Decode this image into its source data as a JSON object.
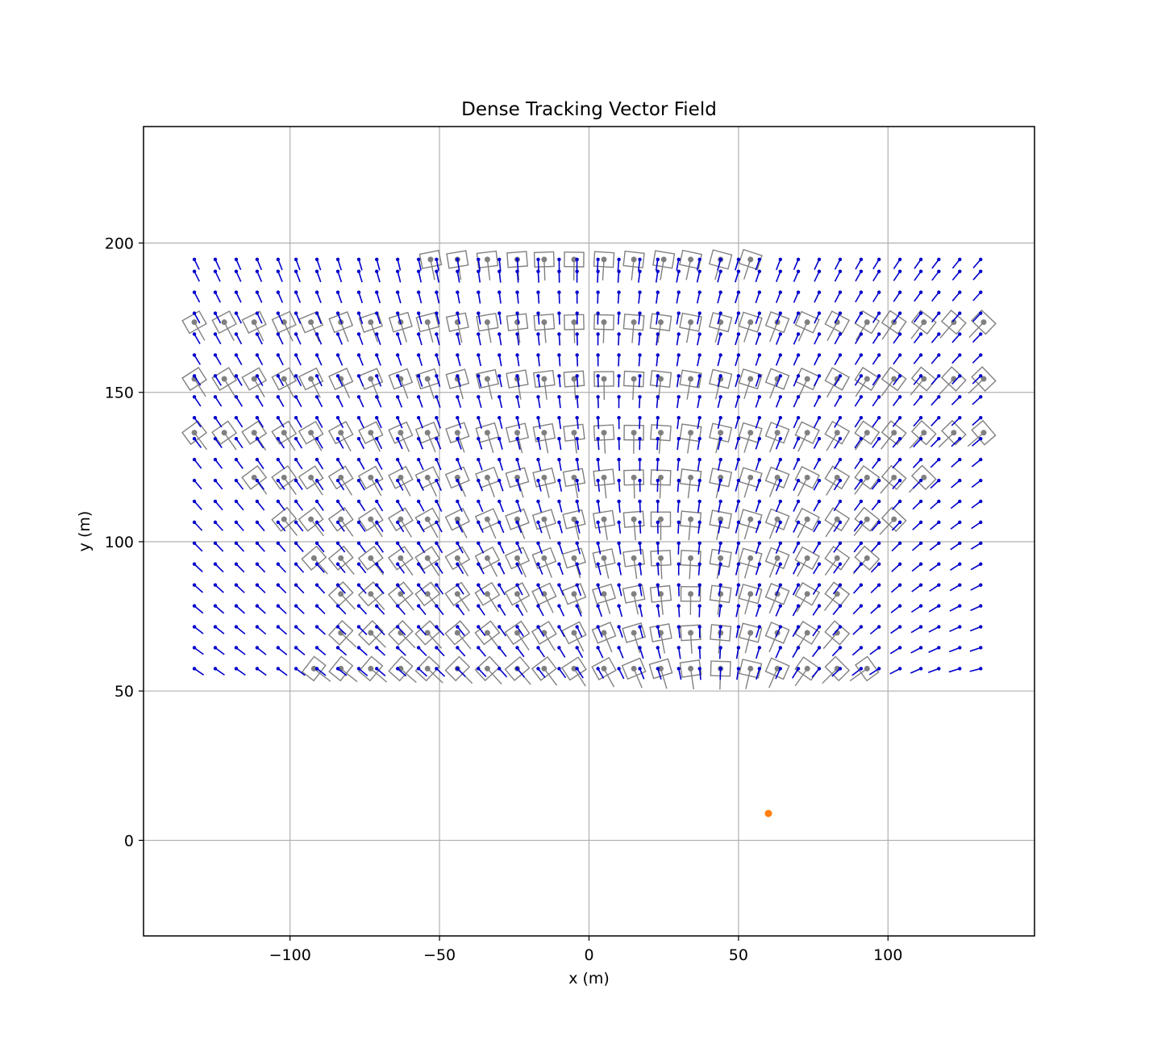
{
  "chart_data": {
    "type": "vector-field",
    "title": "Dense Tracking Vector Field",
    "xlabel": "x (m)",
    "ylabel": "y (m)",
    "xlim": [
      -149,
      149
    ],
    "ylim": [
      -32,
      239
    ],
    "xticks": [
      -100,
      -50,
      0,
      50,
      100
    ],
    "xtick_labels": [
      "−100",
      "−50",
      "0",
      "50",
      "100"
    ],
    "yticks": [
      0,
      50,
      100,
      150,
      200
    ],
    "ytick_labels": [
      "0",
      "50",
      "100",
      "150",
      "200"
    ],
    "grid": true,
    "colors": {
      "vectors": "#0000cc",
      "tracked": "#808080",
      "sensor": "#ff7f0e",
      "grid": "#b0b0b0",
      "axes": "#000000"
    },
    "grid_x": [
      -132,
      -125,
      -118,
      -111,
      -104,
      -98,
      -91,
      -84,
      -77,
      -71,
      -64,
      -57,
      -51,
      -44,
      -37,
      -30,
      -24,
      -17,
      -10,
      -4,
      3,
      10,
      17,
      23,
      30,
      37,
      44,
      50,
      57,
      64,
      70,
      77,
      84,
      91,
      97,
      104,
      111,
      117,
      124,
      131
    ],
    "grid_y": [
      57.5,
      64.5,
      71.5,
      78.5,
      85.5,
      92.5,
      99.5,
      106.5,
      113.5,
      120.5,
      127.5,
      134.5,
      141.5,
      148.5,
      155.5,
      162.5,
      169.5,
      176.5,
      183.5,
      190.5,
      194.5
    ],
    "sensor": {
      "x": 60,
      "y": 9
    },
    "tracked_objects": [
      {
        "y": 194.5,
        "x": [
          -53,
          -44,
          -34,
          -24,
          -15,
          -5,
          5,
          15,
          25,
          34,
          44,
          54
        ]
      },
      {
        "y": 173.5,
        "x": [
          -132,
          -122,
          -112,
          -102,
          -93,
          -83,
          -73,
          -63,
          -54,
          -44,
          -34,
          -24,
          -15,
          -5,
          5,
          15,
          24,
          34,
          44,
          54,
          63,
          73,
          83,
          93,
          102,
          112,
          122,
          132
        ]
      },
      {
        "y": 154.5,
        "x": [
          -132,
          -122,
          -112,
          -102,
          -93,
          -83,
          -73,
          -63,
          -54,
          -44,
          -34,
          -24,
          -15,
          -5,
          5,
          15,
          24,
          34,
          44,
          54,
          63,
          73,
          83,
          93,
          102,
          112,
          122,
          132
        ]
      },
      {
        "y": 136.5,
        "x": [
          -132,
          -122,
          -112,
          -102,
          -93,
          -83,
          -73,
          -63,
          -54,
          -44,
          -34,
          -24,
          -15,
          -5,
          5,
          15,
          24,
          34,
          44,
          54,
          63,
          73,
          83,
          93,
          102,
          112,
          122,
          132
        ]
      },
      {
        "y": 121.5,
        "x": [
          -112,
          -102,
          -93,
          -83,
          -73,
          -63,
          -54,
          -44,
          -34,
          -24,
          -15,
          -5,
          5,
          15,
          24,
          34,
          44,
          54,
          63,
          73,
          83,
          93,
          102,
          112
        ]
      },
      {
        "y": 107.5,
        "x": [
          -102,
          -93,
          -83,
          -73,
          -63,
          -54,
          -44,
          -34,
          -24,
          -15,
          -5,
          5,
          15,
          24,
          34,
          44,
          54,
          63,
          73,
          83,
          93,
          102
        ]
      },
      {
        "y": 94.5,
        "x": [
          -92,
          -83,
          -73,
          -63,
          -54,
          -44,
          -34,
          -24,
          -15,
          -5,
          5,
          15,
          24,
          34,
          44,
          54,
          63,
          73,
          83,
          93
        ]
      },
      {
        "y": 82.5,
        "x": [
          -83,
          -73,
          -63,
          -54,
          -44,
          -34,
          -24,
          -15,
          -5,
          5,
          15,
          24,
          34,
          44,
          54,
          63,
          73,
          83
        ]
      },
      {
        "y": 69.5,
        "x": [
          -83,
          -73,
          -63,
          -54,
          -44,
          -34,
          -24,
          -15,
          -5,
          5,
          15,
          24,
          34,
          44,
          54,
          63,
          73,
          83
        ]
      },
      {
        "y": 57.5,
        "x": [
          -92,
          -83,
          -73,
          -63,
          -54,
          -44,
          -34,
          -24,
          -15,
          -5,
          5,
          15,
          24,
          34,
          44,
          54,
          63,
          73,
          83,
          93
        ]
      }
    ]
  }
}
